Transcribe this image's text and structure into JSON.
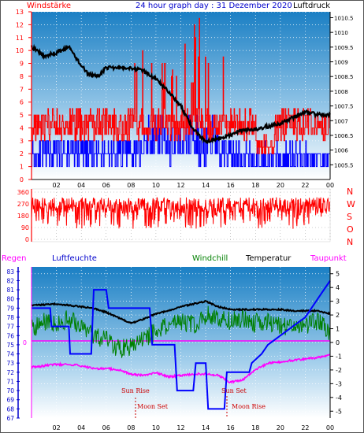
{
  "header": {
    "left_label": "Windstärke",
    "title": "24 hour graph day : 31 Dezember 2020",
    "right_label": "Luftdruck"
  },
  "middle": {
    "right_labels": [
      "N",
      "W",
      "S",
      "O",
      "N"
    ]
  },
  "bottom_header": {
    "regen": "Regen",
    "luftfeuchte": "Luftfeuchte",
    "windchill": "Windchill",
    "temperatur": "Temperatur",
    "taupunkt": "Taupunkt"
  },
  "annotations": {
    "sun_rise": "Sun Rise",
    "moon_set": "Moon Set",
    "sun_set": "Sun Set",
    "moon_rise": "Moon Rise"
  },
  "colors": {
    "wind": "#ff0000",
    "gust_bars": "#0000ff",
    "pressure": "#000000",
    "humidity": "#0000ff",
    "windchill": "#008000",
    "temperature": "#000000",
    "dewpoint": "#ff00ff",
    "plot_gradient_top": "#1a7fc4",
    "plot_gradient_bottom": "#ffffff"
  },
  "chart_data": [
    {
      "type": "line",
      "title": "24 hour graph day : 31 Dezember 2020",
      "x_ticks": [
        "02",
        "04",
        "06",
        "08",
        "10",
        "12",
        "14",
        "16",
        "18",
        "20",
        "22",
        "00"
      ],
      "left_axis": {
        "label": "Windstärke",
        "ticks": [
          0,
          1,
          2,
          3,
          4,
          5,
          6,
          7,
          8,
          9,
          10,
          11,
          12,
          13
        ],
        "ylim": [
          0,
          13
        ]
      },
      "right_axis": {
        "label": "Luftdruck",
        "ticks": [
          1005.5,
          1006,
          1006.5,
          1007,
          1007.5,
          1008,
          1008.5,
          1009,
          1009.5,
          1010,
          1010.5
        ],
        "ylim": [
          1005,
          1010.7
        ]
      },
      "series": [
        {
          "name": "Luftdruck",
          "x": [
            0,
            1,
            2,
            3,
            3.8,
            4.5,
            5.3,
            6,
            7,
            8,
            9,
            10,
            11,
            12,
            13,
            14,
            15,
            16,
            17,
            18,
            19,
            20,
            21,
            22,
            23,
            24
          ],
          "values": [
            1009.5,
            1009.2,
            1009.3,
            1009.5,
            1009.0,
            1008.6,
            1008.5,
            1008.8,
            1008.8,
            1008.8,
            1008.7,
            1008.4,
            1008.0,
            1007.5,
            1006.7,
            1006.3,
            1006.4,
            1006.5,
            1006.7,
            1006.7,
            1006.8,
            1006.9,
            1007.1,
            1007.3,
            1007.2,
            1007.2
          ]
        }
      ]
    },
    {
      "type": "line",
      "left_axis": {
        "ticks": [
          0,
          90,
          180,
          270,
          360
        ],
        "ylim": [
          0,
          360
        ]
      },
      "right_labels": [
        "N",
        "W",
        "S",
        "O",
        "N"
      ]
    },
    {
      "type": "line",
      "left_axis": {
        "label": "Luftfeuchte",
        "ticks": [
          67,
          68,
          69,
          70,
          71,
          72,
          73,
          74,
          75,
          76,
          77,
          78,
          79,
          80,
          81,
          82,
          83
        ],
        "ylim": [
          67,
          83.5
        ]
      },
      "right_axis": {
        "label": "Temperatur",
        "ticks": [
          -5,
          -4,
          -3,
          -2,
          -1,
          0,
          1,
          2,
          3,
          4,
          5
        ],
        "ylim": [
          -5.5,
          5.5
        ]
      },
      "rain_axis": {
        "label": "Regen",
        "ticks": [
          0
        ]
      },
      "series": [
        {
          "name": "Luftfeuchte",
          "x": [
            0,
            1.5,
            1.6,
            3,
            3.1,
            4.8,
            5.0,
            6.0,
            6.2,
            9.5,
            9.7,
            11.5,
            11.7,
            13,
            13.2,
            14,
            14.2,
            15.5,
            15.7,
            17.5,
            17.7,
            18.5,
            19,
            20,
            21,
            22,
            22.5,
            23,
            23.5,
            24
          ],
          "values": [
            79,
            79,
            77,
            77,
            74,
            74,
            81,
            81,
            79,
            79,
            75,
            75,
            70,
            70,
            73,
            73,
            68,
            68,
            72,
            72,
            73,
            74,
            75,
            76,
            77,
            78,
            79,
            80,
            81,
            82
          ]
        },
        {
          "name": "Temperatur",
          "x": [
            0,
            2,
            3,
            4,
            5,
            6,
            7,
            8,
            9,
            10,
            11,
            12,
            13,
            14,
            15,
            16,
            17,
            18,
            19,
            20,
            21,
            22,
            23,
            24
          ],
          "values": [
            2.7,
            2.8,
            2.7,
            2.6,
            2.5,
            2.2,
            1.8,
            1.4,
            1.7,
            2.1,
            2.3,
            2.6,
            2.8,
            3.0,
            2.6,
            2.4,
            2.4,
            2.4,
            2.4,
            2.4,
            2.3,
            2.3,
            2.3,
            2.1
          ]
        },
        {
          "name": "Windchill",
          "x": [
            0,
            1,
            2,
            3,
            4,
            5,
            6,
            7,
            8,
            9,
            10,
            11,
            12,
            13,
            14,
            15,
            16,
            17,
            18,
            19,
            20,
            21,
            22,
            23,
            24
          ],
          "values": [
            1.0,
            1.5,
            1.2,
            1.8,
            1.0,
            0.5,
            0.2,
            -0.5,
            -0.3,
            0.2,
            0.8,
            1.2,
            1.5,
            1.3,
            2.0,
            1.8,
            1.6,
            1.8,
            1.4,
            1.6,
            1.2,
            1.0,
            1.3,
            1.5,
            0.8
          ]
        },
        {
          "name": "Taupunkt",
          "x": [
            0,
            1,
            2,
            3,
            4,
            5,
            6,
            7,
            8,
            9,
            10,
            11,
            12,
            13,
            14,
            15,
            16,
            17,
            18,
            19,
            20,
            21,
            22,
            23,
            24
          ],
          "values": [
            -1.8,
            -1.7,
            -1.6,
            -1.6,
            -1.7,
            -1.9,
            -1.9,
            -2.0,
            -2.3,
            -2.4,
            -2.2,
            -2.5,
            -2.4,
            -2.3,
            -2.3,
            -2.4,
            -2.9,
            -2.7,
            -2.0,
            -1.5,
            -1.4,
            -1.3,
            -1.2,
            -1.1,
            -0.9
          ]
        }
      ]
    }
  ]
}
